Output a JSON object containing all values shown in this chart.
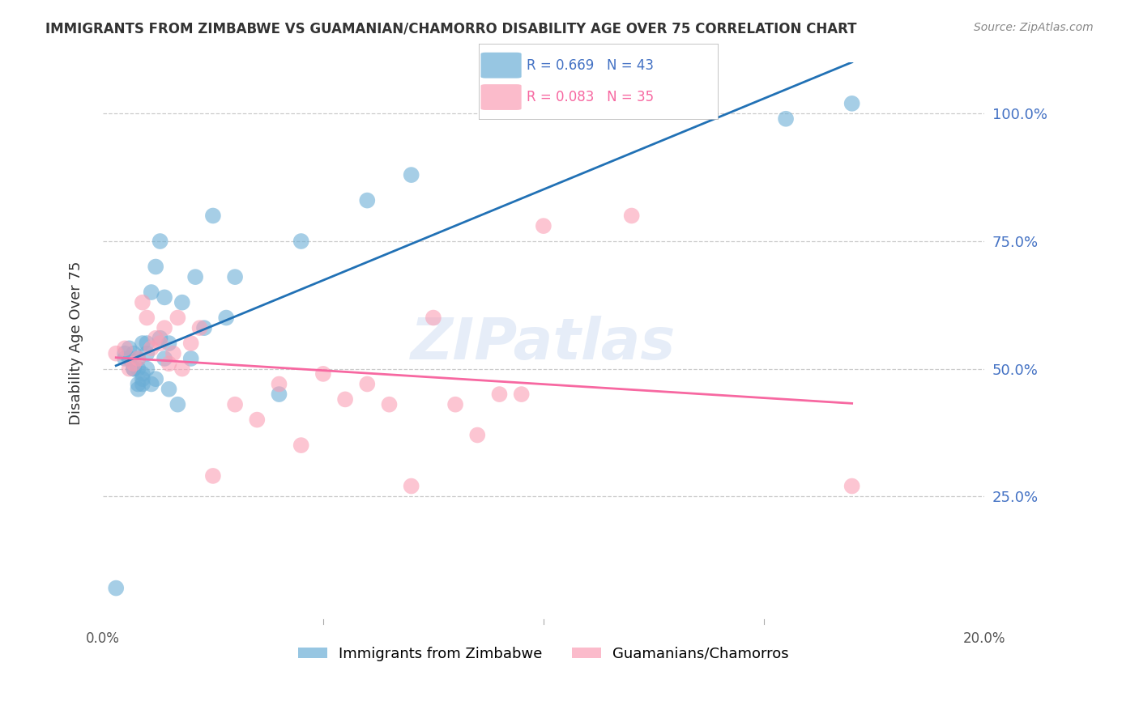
{
  "title": "IMMIGRANTS FROM ZIMBABWE VS GUAMANIAN/CHAMORRO DISABILITY AGE OVER 75 CORRELATION CHART",
  "source": "Source: ZipAtlas.com",
  "xlabel": "",
  "ylabel": "Disability Age Over 75",
  "right_yticks": [
    0.0,
    0.25,
    0.5,
    0.75,
    1.0
  ],
  "right_yticklabels": [
    "",
    "25.0%",
    "50.0%",
    "75.0%",
    "100.0%"
  ],
  "xlim": [
    0.0,
    0.2
  ],
  "ylim": [
    0.0,
    1.1
  ],
  "xticks": [
    0.0,
    0.05,
    0.1,
    0.15,
    0.2
  ],
  "xticklabels": [
    "0.0%",
    "",
    "",
    "",
    "20.0%"
  ],
  "legend_blue_r": "R = 0.669",
  "legend_blue_n": "N = 43",
  "legend_pink_r": "R = 0.083",
  "legend_pink_n": "N = 35",
  "legend_label_blue": "Immigrants from Zimbabwe",
  "legend_label_pink": "Guamanians/Chamorros",
  "blue_color": "#6baed6",
  "pink_color": "#fa9fb5",
  "blue_line_color": "#2171b5",
  "pink_line_color": "#f768a1",
  "watermark": "ZIPatlas",
  "blue_x": [
    0.003,
    0.005,
    0.005,
    0.006,
    0.006,
    0.007,
    0.007,
    0.007,
    0.008,
    0.008,
    0.008,
    0.008,
    0.009,
    0.009,
    0.009,
    0.009,
    0.01,
    0.01,
    0.01,
    0.011,
    0.011,
    0.012,
    0.012,
    0.013,
    0.013,
    0.014,
    0.014,
    0.015,
    0.015,
    0.017,
    0.018,
    0.02,
    0.021,
    0.023,
    0.025,
    0.028,
    0.03,
    0.04,
    0.045,
    0.06,
    0.07,
    0.155,
    0.17
  ],
  "blue_y": [
    0.07,
    0.52,
    0.53,
    0.52,
    0.54,
    0.5,
    0.5,
    0.53,
    0.46,
    0.47,
    0.5,
    0.52,
    0.47,
    0.48,
    0.49,
    0.55,
    0.5,
    0.53,
    0.55,
    0.47,
    0.65,
    0.48,
    0.7,
    0.56,
    0.75,
    0.52,
    0.64,
    0.46,
    0.55,
    0.43,
    0.63,
    0.52,
    0.68,
    0.58,
    0.8,
    0.6,
    0.68,
    0.45,
    0.75,
    0.83,
    0.88,
    0.99,
    1.02
  ],
  "pink_x": [
    0.003,
    0.005,
    0.006,
    0.007,
    0.008,
    0.009,
    0.01,
    0.011,
    0.012,
    0.013,
    0.014,
    0.015,
    0.016,
    0.017,
    0.018,
    0.02,
    0.022,
    0.025,
    0.03,
    0.035,
    0.04,
    0.045,
    0.05,
    0.055,
    0.06,
    0.065,
    0.07,
    0.075,
    0.08,
    0.085,
    0.09,
    0.095,
    0.1,
    0.12,
    0.17
  ],
  "pink_y": [
    0.53,
    0.54,
    0.5,
    0.51,
    0.52,
    0.63,
    0.6,
    0.54,
    0.56,
    0.55,
    0.58,
    0.51,
    0.53,
    0.6,
    0.5,
    0.55,
    0.58,
    0.29,
    0.43,
    0.4,
    0.47,
    0.35,
    0.49,
    0.44,
    0.47,
    0.43,
    0.27,
    0.6,
    0.43,
    0.37,
    0.45,
    0.45,
    0.78,
    0.8,
    0.27
  ]
}
